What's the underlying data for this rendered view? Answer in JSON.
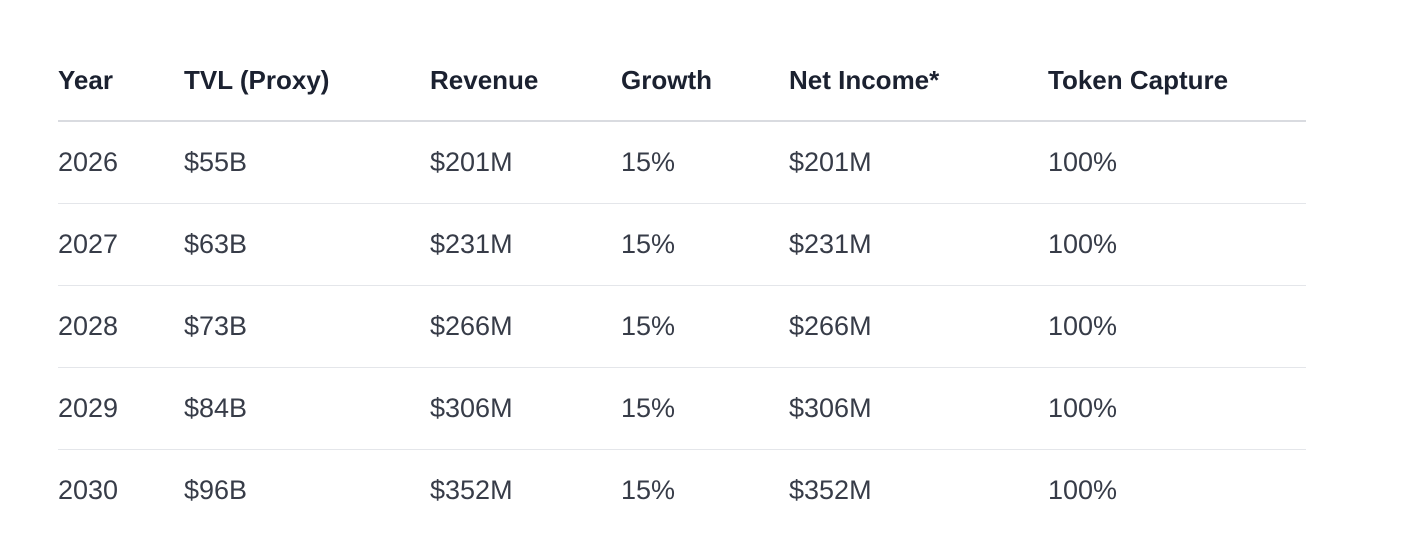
{
  "table": {
    "headers": [
      "Year",
      "TVL (Proxy)",
      "Revenue",
      "Growth",
      "Net Income*",
      "Token Capture"
    ],
    "rows": [
      [
        "2026",
        "$55B",
        "$201M",
        "15%",
        "$201M",
        "100%"
      ],
      [
        "2027",
        "$63B",
        "$231M",
        "15%",
        "$231M",
        "100%"
      ],
      [
        "2028",
        "$73B",
        "$266M",
        "15%",
        "$266M",
        "100%"
      ],
      [
        "2029",
        "$84B",
        "$306M",
        "15%",
        "$306M",
        "100%"
      ],
      [
        "2030",
        "$96B",
        "$352M",
        "15%",
        "$352M",
        "100%"
      ]
    ]
  },
  "colors": {
    "header_text": "#1b2130",
    "cell_text": "#373c48",
    "divider": "#e4e6ea",
    "header_divider": "#d9dbe0"
  }
}
